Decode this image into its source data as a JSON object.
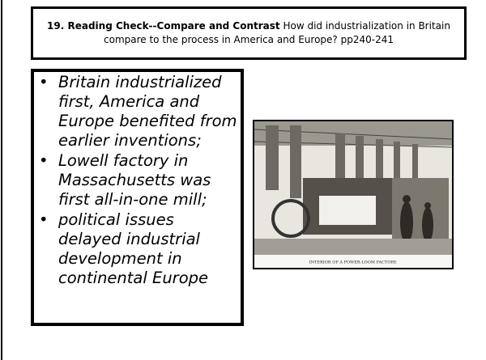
{
  "header": {
    "label": "19. Reading Check--Compare and Contrast",
    "question": "How did industrialization in Britain compare to the process in America and Europe? pp240-241"
  },
  "bullets": [
    "Britain industrialized first, America and Europe benefited from earlier inventions;",
    "Lowell factory in Massachusetts was first all-in-one mill;",
    "political issues delayed industrial development in continental Europe"
  ],
  "image": {
    "caption": "INTERIOR OF A POWER-LOOM FACTORY."
  }
}
